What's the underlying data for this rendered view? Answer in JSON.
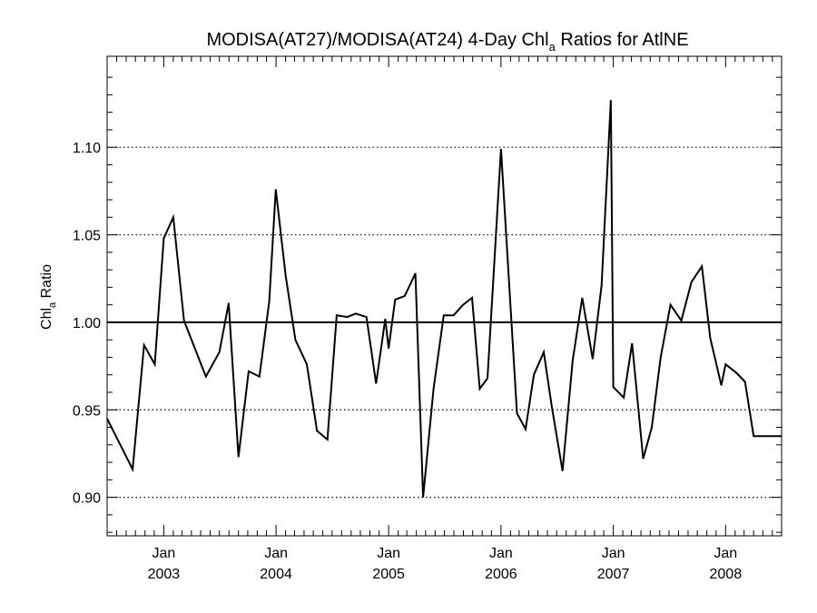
{
  "chart_data": {
    "type": "line",
    "title": {
      "prefix": "MODISA(AT27)/MODISA(AT24) 4-Day Chl",
      "subscript": "a",
      "suffix": " Ratios for AtlNE"
    },
    "ylabel": {
      "prefix": "Chl",
      "subscript": "a",
      "suffix": " Ratio"
    },
    "ylim": [
      0.878,
      1.152
    ],
    "xlim": [
      "2002-07-01",
      "2008-07-01"
    ],
    "y_ticks": [
      {
        "value": 0.9,
        "label": "0.90"
      },
      {
        "value": 0.95,
        "label": "0.95"
      },
      {
        "value": 1.0,
        "label": "1.00"
      },
      {
        "value": 1.05,
        "label": "1.05"
      },
      {
        "value": 1.1,
        "label": "1.10"
      }
    ],
    "x_ticks": [
      {
        "date": "2003-01-01",
        "month": "Jan",
        "year": "2003"
      },
      {
        "date": "2004-01-01",
        "month": "Jan",
        "year": "2004"
      },
      {
        "date": "2005-01-01",
        "month": "Jan",
        "year": "2005"
      },
      {
        "date": "2006-01-01",
        "month": "Jan",
        "year": "2006"
      },
      {
        "date": "2007-01-01",
        "month": "Jan",
        "year": "2007"
      },
      {
        "date": "2008-01-01",
        "month": "Jan",
        "year": "2008"
      }
    ],
    "grid": "dotted horizontal at 0.90, 0.95, 1.05, 1.10",
    "reference_line": 1.0,
    "series": [
      {
        "x": [
          "2002-07-01",
          "2002-09-22",
          "2002-10-29",
          "2002-12-03",
          "2003-01-01",
          "2003-02-01",
          "2003-03-08",
          "2003-05-18",
          "2003-07-01",
          "2003-07-31",
          "2003-09-01",
          "2003-10-04",
          "2003-11-08",
          "2003-12-10",
          "2003-12-31",
          "2004-02-01",
          "2004-03-04",
          "2004-04-10",
          "2004-05-13",
          "2004-06-16",
          "2004-07-16",
          "2004-08-19",
          "2004-09-16",
          "2004-10-21",
          "2004-11-21",
          "2004-12-21",
          "2005-01-01",
          "2005-01-22",
          "2005-02-22",
          "2005-03-29",
          "2005-04-23",
          "2005-05-27",
          "2005-06-29",
          "2005-07-31",
          "2005-08-31",
          "2005-09-29",
          "2005-10-24",
          "2005-11-18",
          "2006-01-01",
          "2006-02-22",
          "2006-03-22",
          "2006-04-18",
          "2006-05-20",
          "2006-06-15",
          "2006-07-20",
          "2006-08-22",
          "2006-09-22",
          "2006-10-26",
          "2006-11-24",
          "2006-12-24",
          "2007-01-01",
          "2007-02-04",
          "2007-03-03",
          "2007-04-08",
          "2007-05-06",
          "2007-06-04",
          "2007-07-06",
          "2007-08-10",
          "2007-09-12",
          "2007-10-16",
          "2007-11-12",
          "2007-12-18",
          "2008-01-01",
          "2008-02-06",
          "2008-03-04",
          "2008-04-01",
          "2008-05-04",
          "2008-06-07",
          "2008-07-01"
        ],
        "y": [
          0.945,
          0.916,
          0.987,
          0.976,
          1.048,
          1.06,
          1.001,
          0.969,
          0.983,
          1.011,
          0.923,
          0.972,
          0.969,
          1.012,
          1.076,
          1.027,
          0.99,
          0.976,
          0.938,
          0.933,
          1.004,
          1.003,
          1.005,
          1.003,
          0.965,
          1.002,
          0.985,
          1.013,
          1.015,
          1.028,
          0.9,
          0.962,
          1.004,
          1.004,
          1.01,
          1.014,
          0.962,
          0.968,
          1.099,
          0.948,
          0.939,
          0.97,
          0.983,
          0.952,
          0.915,
          0.978,
          1.014,
          0.979,
          1.021,
          1.127,
          0.963,
          0.957,
          0.988,
          0.922,
          0.94,
          0.98,
          1.01,
          1.001,
          1.023,
          1.032,
          0.991,
          0.964,
          0.976,
          0.971,
          0.966,
          0.935,
          0.935,
          0.935,
          0.935
        ]
      }
    ]
  }
}
